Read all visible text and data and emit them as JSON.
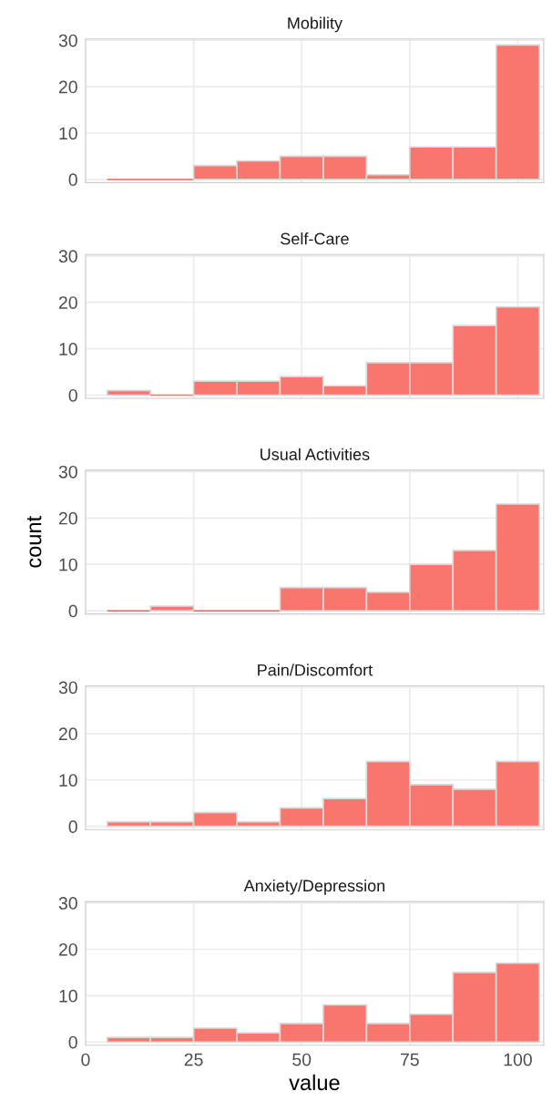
{
  "chart_data": [
    {
      "type": "histogram",
      "title": "Mobility",
      "bins": [
        5,
        15,
        25,
        35,
        45,
        55,
        65,
        75,
        85,
        95,
        105
      ],
      "values": [
        0,
        0,
        3,
        4,
        5,
        5,
        1,
        7,
        7,
        29
      ],
      "color": "#f8766d",
      "xlim": [
        0,
        106
      ],
      "ylim": [
        -0.7,
        30.3
      ],
      "xticks": [
        0,
        25,
        50,
        75,
        100
      ],
      "yticks": [
        0,
        10,
        20,
        30
      ],
      "grid": true,
      "tick_labels": "y"
    },
    {
      "type": "histogram",
      "title": "Self-Care",
      "bins": [
        5,
        15,
        25,
        35,
        45,
        55,
        65,
        75,
        85,
        95,
        105
      ],
      "values": [
        1,
        0,
        3,
        3,
        4,
        2,
        7,
        7,
        15,
        19
      ],
      "color": "#f8766d",
      "xlim": [
        0,
        106
      ],
      "ylim": [
        -0.7,
        30.3
      ],
      "xticks": [
        0,
        25,
        50,
        75,
        100
      ],
      "yticks": [
        0,
        10,
        20,
        30
      ],
      "grid": true,
      "tick_labels": "y"
    },
    {
      "type": "histogram",
      "title": "Usual Activities",
      "ylabel": "count",
      "bins": [
        5,
        15,
        25,
        35,
        45,
        55,
        65,
        75,
        85,
        95,
        105
      ],
      "values": [
        0,
        1,
        0,
        0,
        5,
        5,
        4,
        10,
        13,
        23
      ],
      "color": "#f8766d",
      "xlim": [
        0,
        106
      ],
      "ylim": [
        -0.7,
        30.3
      ],
      "xticks": [
        0,
        25,
        50,
        75,
        100
      ],
      "yticks": [
        0,
        10,
        20,
        30
      ],
      "grid": true,
      "tick_labels": "y"
    },
    {
      "type": "histogram",
      "title": "Pain/Discomfort",
      "bins": [
        5,
        15,
        25,
        35,
        45,
        55,
        65,
        75,
        85,
        95,
        105
      ],
      "values": [
        1,
        1,
        3,
        1,
        4,
        6,
        14,
        9,
        8,
        14
      ],
      "color": "#f8766d",
      "xlim": [
        0,
        106
      ],
      "ylim": [
        -0.7,
        30.3
      ],
      "xticks": [
        0,
        25,
        50,
        75,
        100
      ],
      "yticks": [
        0,
        10,
        20,
        30
      ],
      "grid": true,
      "tick_labels": "y"
    },
    {
      "type": "histogram",
      "title": "Anxiety/Depression",
      "xlabel": "value",
      "bins": [
        5,
        15,
        25,
        35,
        45,
        55,
        65,
        75,
        85,
        95,
        105
      ],
      "values": [
        1,
        1,
        3,
        2,
        4,
        8,
        4,
        6,
        15,
        17
      ],
      "color": "#f8766d",
      "xlim": [
        0,
        106
      ],
      "ylim": [
        -0.7,
        30.3
      ],
      "xticks": [
        0,
        25,
        50,
        75,
        100
      ],
      "yticks": [
        0,
        10,
        20,
        30
      ],
      "grid": true
    }
  ]
}
